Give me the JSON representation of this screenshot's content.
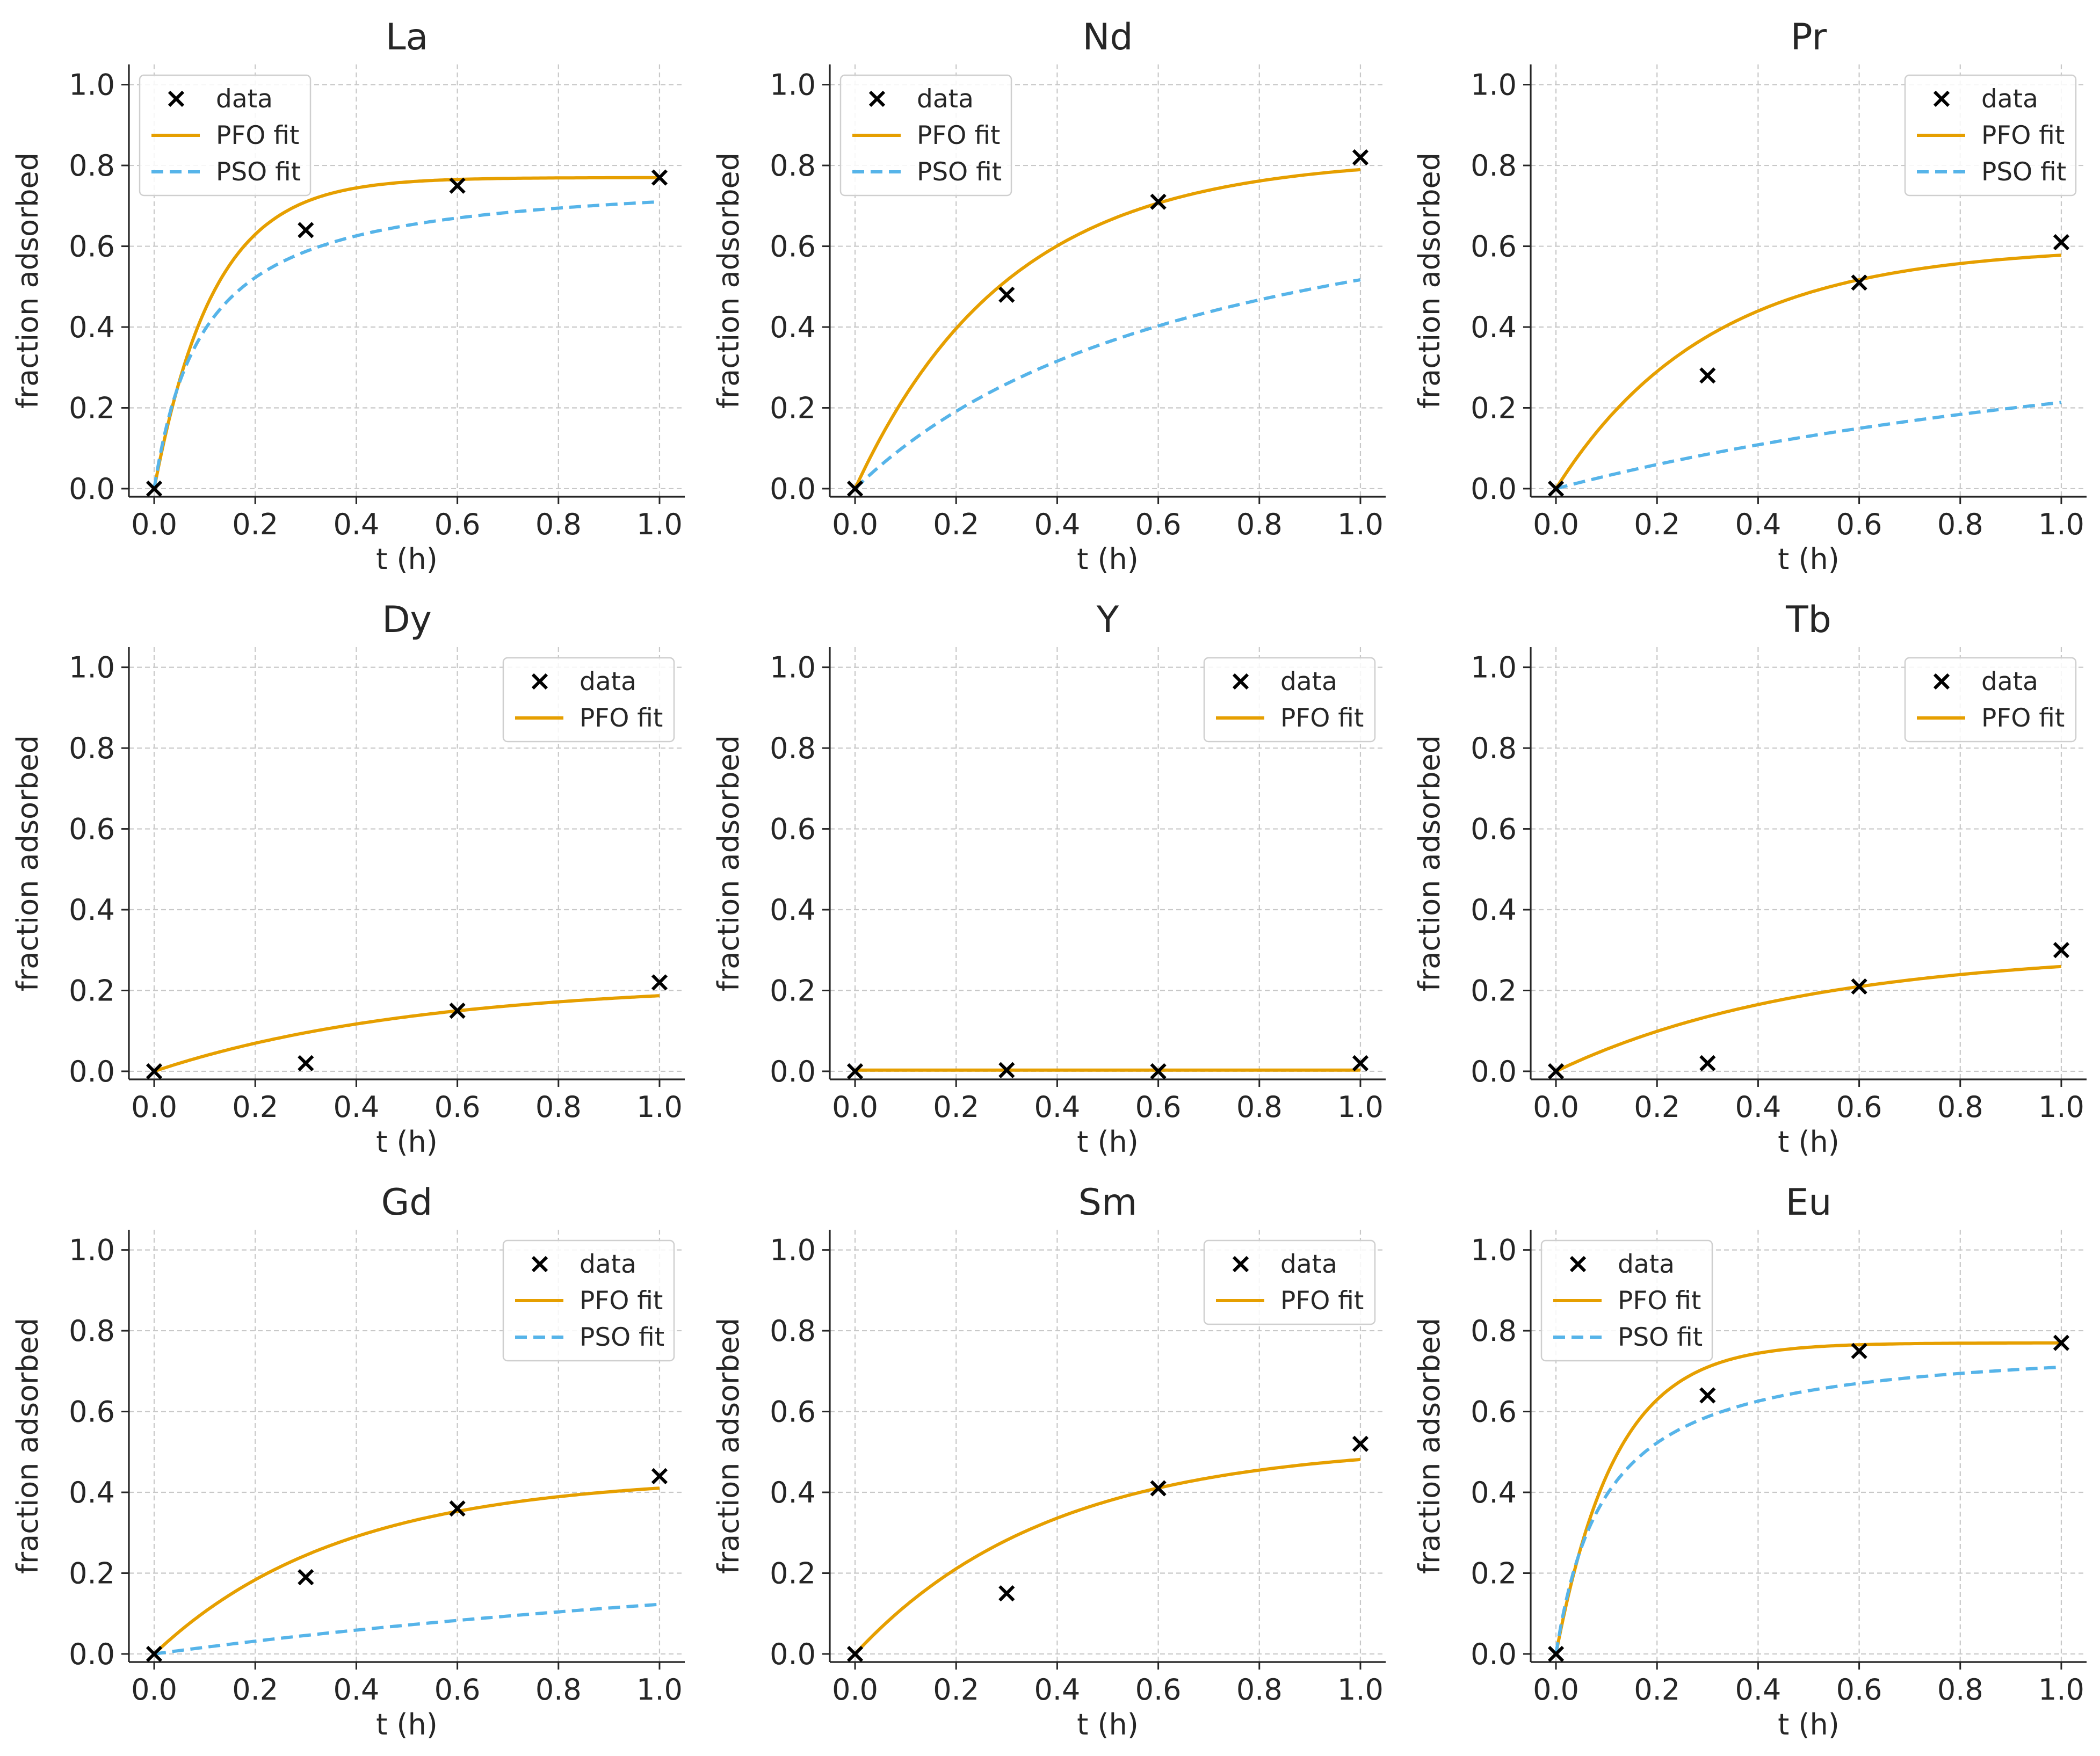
{
  "colors": {
    "data": "#000000",
    "pfo": "#E69F00",
    "pso": "#56B4E9"
  },
  "chart_data": [
    {
      "type": "line",
      "title": "La",
      "xlabel": "t (h)",
      "ylabel": "fraction adsorbed",
      "xlim": [
        -0.05,
        1.05
      ],
      "ylim": [
        -0.02,
        1.05
      ],
      "xticks": [
        "0.0",
        "0.2",
        "0.4",
        "0.6",
        "0.8",
        "1.0"
      ],
      "yticks": [
        "0.0",
        "0.2",
        "0.4",
        "0.6",
        "0.8",
        "1.0"
      ],
      "grid": true,
      "legend": "upper left",
      "data": {
        "name": "data",
        "x": [
          0.0,
          0.3,
          0.6,
          1.0
        ],
        "y": [
          0.0,
          0.64,
          0.75,
          0.77
        ]
      },
      "series": [
        {
          "name": "PFO fit",
          "model": "pfo",
          "qe": 0.77,
          "k": 8.5
        },
        {
          "name": "PSO fit",
          "model": "pso",
          "qe": 0.78,
          "k": 13.0
        }
      ]
    },
    {
      "type": "line",
      "title": "Nd",
      "xlabel": "t (h)",
      "ylabel": "fraction adsorbed",
      "xlim": [
        -0.05,
        1.05
      ],
      "ylim": [
        -0.02,
        1.05
      ],
      "xticks": [
        "0.0",
        "0.2",
        "0.4",
        "0.6",
        "0.8",
        "1.0"
      ],
      "yticks": [
        "0.0",
        "0.2",
        "0.4",
        "0.6",
        "0.8",
        "1.0"
      ],
      "grid": true,
      "legend": "upper left",
      "data": {
        "name": "data",
        "x": [
          0.0,
          0.3,
          0.6,
          1.0
        ],
        "y": [
          0.0,
          0.48,
          0.71,
          0.82
        ]
      },
      "series": [
        {
          "name": "PFO fit",
          "model": "pfo",
          "qe": 0.82,
          "k": 3.3
        },
        {
          "name": "PSO fit",
          "model": "pso",
          "qe": 0.9,
          "k": 1.5
        }
      ]
    },
    {
      "type": "line",
      "title": "Pr",
      "xlabel": "t (h)",
      "ylabel": "fraction adsorbed",
      "xlim": [
        -0.05,
        1.05
      ],
      "ylim": [
        -0.02,
        1.05
      ],
      "xticks": [
        "0.0",
        "0.2",
        "0.4",
        "0.6",
        "0.8",
        "1.0"
      ],
      "yticks": [
        "0.0",
        "0.2",
        "0.4",
        "0.6",
        "0.8",
        "1.0"
      ],
      "grid": true,
      "legend": "upper right",
      "data": {
        "name": "data",
        "x": [
          0.0,
          0.3,
          0.6,
          1.0
        ],
        "y": [
          0.0,
          0.28,
          0.51,
          0.61
        ]
      },
      "series": [
        {
          "name": "PFO fit",
          "model": "pfo",
          "qe": 0.6,
          "k": 3.3
        },
        {
          "name": "PSO fit",
          "model": "pso",
          "qe": 0.6,
          "k": 0.92
        }
      ]
    },
    {
      "type": "line",
      "title": "Dy",
      "xlabel": "t (h)",
      "ylabel": "fraction adsorbed",
      "xlim": [
        -0.05,
        1.05
      ],
      "ylim": [
        -0.02,
        1.05
      ],
      "xticks": [
        "0.0",
        "0.2",
        "0.4",
        "0.6",
        "0.8",
        "1.0"
      ],
      "yticks": [
        "0.0",
        "0.2",
        "0.4",
        "0.6",
        "0.8",
        "1.0"
      ],
      "grid": true,
      "legend": "upper right",
      "data": {
        "name": "data",
        "x": [
          0.0,
          0.3,
          0.6,
          1.0
        ],
        "y": [
          0.0,
          0.02,
          0.15,
          0.22
        ]
      },
      "series": [
        {
          "name": "PFO fit",
          "model": "pfo",
          "qe": 0.22,
          "k": 1.9
        }
      ]
    },
    {
      "type": "line",
      "title": "Y",
      "xlabel": "t (h)",
      "ylabel": "fraction adsorbed",
      "xlim": [
        -0.05,
        1.05
      ],
      "ylim": [
        -0.02,
        1.05
      ],
      "xticks": [
        "0.0",
        "0.2",
        "0.4",
        "0.6",
        "0.8",
        "1.0"
      ],
      "yticks": [
        "0.0",
        "0.2",
        "0.4",
        "0.6",
        "0.8",
        "1.0"
      ],
      "grid": true,
      "legend": "upper right",
      "data": {
        "name": "data",
        "x": [
          0.0,
          0.3,
          0.6,
          1.0
        ],
        "y": [
          0.0,
          0.003,
          0.0,
          0.02
        ]
      },
      "series": [
        {
          "name": "PFO fit",
          "model": "flat",
          "value": 0.003
        }
      ]
    },
    {
      "type": "line",
      "title": "Tb",
      "xlabel": "t (h)",
      "ylabel": "fraction adsorbed",
      "xlim": [
        -0.05,
        1.05
      ],
      "ylim": [
        -0.02,
        1.05
      ],
      "xticks": [
        "0.0",
        "0.2",
        "0.4",
        "0.6",
        "0.8",
        "1.0"
      ],
      "yticks": [
        "0.0",
        "0.2",
        "0.4",
        "0.6",
        "0.8",
        "1.0"
      ],
      "grid": true,
      "legend": "upper right",
      "data": {
        "name": "data",
        "x": [
          0.0,
          0.3,
          0.6,
          1.0
        ],
        "y": [
          0.0,
          0.02,
          0.21,
          0.3
        ]
      },
      "series": [
        {
          "name": "PFO fit",
          "model": "pfo",
          "qe": 0.3,
          "k": 2.0
        }
      ]
    },
    {
      "type": "line",
      "title": "Gd",
      "xlabel": "t (h)",
      "ylabel": "fraction adsorbed",
      "xlim": [
        -0.05,
        1.05
      ],
      "ylim": [
        -0.02,
        1.05
      ],
      "xticks": [
        "0.0",
        "0.2",
        "0.4",
        "0.6",
        "0.8",
        "1.0"
      ],
      "yticks": [
        "0.0",
        "0.2",
        "0.4",
        "0.6",
        "0.8",
        "1.0"
      ],
      "grid": true,
      "legend": "upper right",
      "data": {
        "name": "data",
        "x": [
          0.0,
          0.3,
          0.6,
          1.0
        ],
        "y": [
          0.0,
          0.19,
          0.36,
          0.44
        ]
      },
      "series": [
        {
          "name": "PFO fit",
          "model": "pfo",
          "qe": 0.44,
          "k": 2.7
        },
        {
          "name": "PSO fit",
          "model": "pso",
          "qe": 0.44,
          "k": 0.88
        }
      ]
    },
    {
      "type": "line",
      "title": "Sm",
      "xlabel": "t (h)",
      "ylabel": "fraction adsorbed",
      "xlim": [
        -0.05,
        1.05
      ],
      "ylim": [
        -0.02,
        1.05
      ],
      "xticks": [
        "0.0",
        "0.2",
        "0.4",
        "0.6",
        "0.8",
        "1.0"
      ],
      "yticks": [
        "0.0",
        "0.2",
        "0.4",
        "0.6",
        "0.8",
        "1.0"
      ],
      "grid": true,
      "legend": "upper right",
      "data": {
        "name": "data",
        "x": [
          0.0,
          0.3,
          0.6,
          1.0
        ],
        "y": [
          0.0,
          0.15,
          0.41,
          0.52
        ]
      },
      "series": [
        {
          "name": "PFO fit",
          "model": "pfo",
          "qe": 0.52,
          "k": 2.6
        }
      ]
    },
    {
      "type": "line",
      "title": "Eu",
      "xlabel": "t (h)",
      "ylabel": "fraction adsorbed",
      "xlim": [
        -0.05,
        1.05
      ],
      "ylim": [
        -0.02,
        1.05
      ],
      "xticks": [
        "0.0",
        "0.2",
        "0.4",
        "0.6",
        "0.8",
        "1.0"
      ],
      "yticks": [
        "0.0",
        "0.2",
        "0.4",
        "0.6",
        "0.8",
        "1.0"
      ],
      "grid": true,
      "legend": "upper left",
      "data": {
        "name": "data",
        "x": [
          0.0,
          0.3,
          0.6,
          1.0
        ],
        "y": [
          0.0,
          0.64,
          0.75,
          0.77
        ]
      },
      "series": [
        {
          "name": "PFO fit",
          "model": "pfo",
          "qe": 0.77,
          "k": 8.5
        },
        {
          "name": "PSO fit",
          "model": "pso",
          "qe": 0.78,
          "k": 13.0
        }
      ]
    }
  ]
}
